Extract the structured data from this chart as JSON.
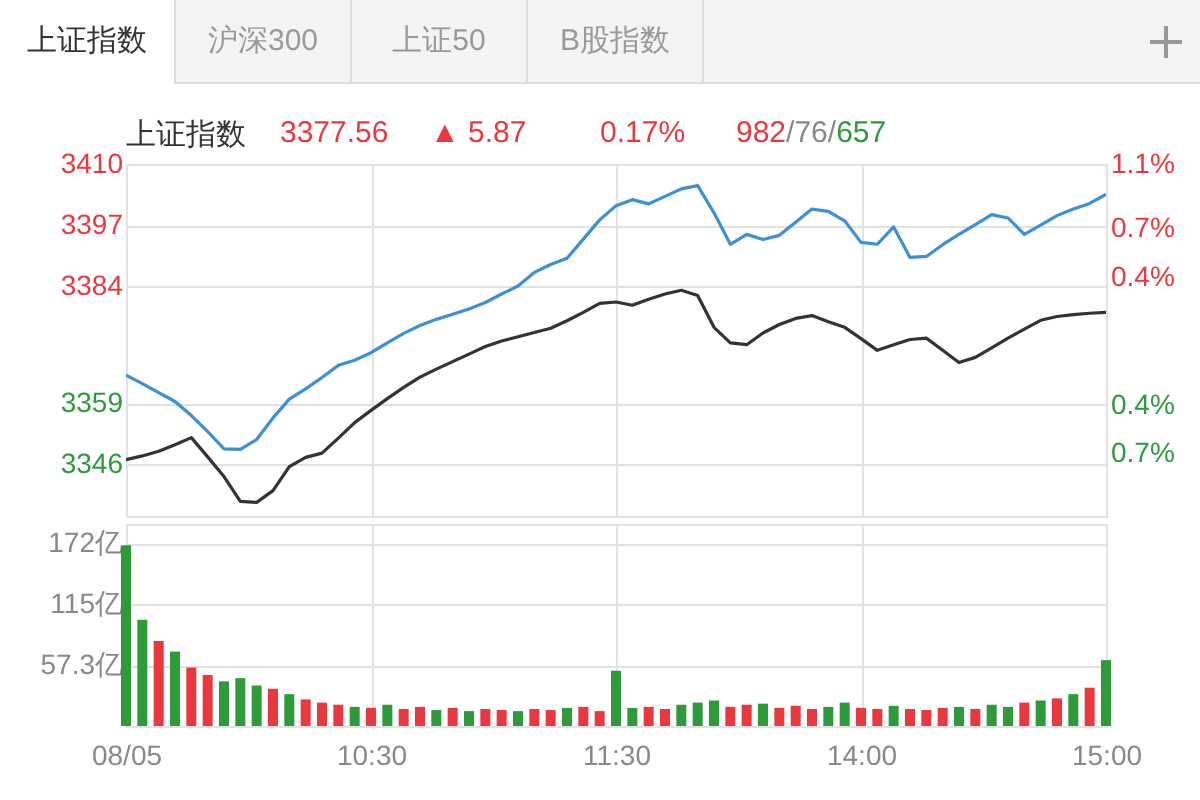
{
  "chart_data": [
    {
      "type": "line",
      "annotations": [
        "上证指数",
        "沪深300",
        "上证50",
        "B股指数",
        "上证指数",
        "3377.56",
        "▲ 5.87",
        "0.17%",
        "982/76/657"
      ],
      "categories": [
        null,
        null,
        null,
        null,
        null,
        null,
        null,
        null,
        null,
        null,
        null,
        null,
        null,
        null,
        null,
        null,
        null,
        null,
        null,
        null,
        null,
        null,
        null,
        null,
        null,
        null,
        null,
        null,
        null,
        null,
        null,
        null,
        null,
        null,
        null,
        null,
        null,
        null,
        null,
        null,
        null,
        null,
        null,
        null,
        null,
        null,
        null,
        null,
        null,
        null,
        null,
        null,
        null,
        null,
        null,
        null,
        null,
        null,
        null,
        null,
        null
      ],
      "ylim": [
        3335,
        3410
      ],
      "yticks": [
        3346,
        3359,
        3384,
        3397,
        3410
      ],
      "y2lim": [
        -1.09,
        1.1
      ],
      "y2ticks": [
        {
          "value": -0.7,
          "label": "0.7%"
        },
        {
          "value": -0.4,
          "label": "0.4%"
        },
        {
          "value": 0.4,
          "label": "0.4%"
        },
        {
          "value": 0.7,
          "label": "0.7%"
        },
        {
          "value": 1.1,
          "label": "1.1%"
        }
      ],
      "grid": true,
      "series": [
        {
          "color": "#3d8fd6",
          "values": [
            3365.0,
            3363.2,
            3361.3,
            3359.4,
            3356.4,
            3353.0,
            3349.3,
            3349.2,
            3351.3,
            3355.9,
            3359.9,
            3362.1,
            3364.5,
            3367.1,
            3368.2,
            3369.8,
            3371.9,
            3373.9,
            3375.6,
            3376.9,
            3378.0,
            3379.1,
            3380.5,
            3382.3,
            3384.0,
            3386.9,
            3388.6,
            3389.9,
            3394.0,
            3398.1,
            3401.1,
            3402.4,
            3401.5,
            3403.1,
            3404.7,
            3405.4,
            3399.6,
            3392.9,
            3395.0,
            3393.9,
            3394.8,
            3397.6,
            3400.4,
            3399.9,
            3397.9,
            3393.3,
            3392.9,
            3396.6,
            3390.1,
            3390.3,
            3392.8,
            3395.0,
            3397.1,
            3399.2,
            3398.5,
            3395.0,
            3397.0,
            3399.0,
            3400.4,
            3401.6,
            3403.5
          ]
        },
        {
          "color": "#333333",
          "values": [
            3347.0,
            3347.8,
            3348.8,
            3350.2,
            3351.7,
            3347.6,
            3343.4,
            3338.1,
            3337.9,
            3340.4,
            3345.5,
            3347.5,
            3348.4,
            3351.6,
            3354.9,
            3357.5,
            3360.0,
            3362.4,
            3364.6,
            3366.3,
            3367.9,
            3369.5,
            3371.1,
            3372.3,
            3373.2,
            3374.1,
            3375.0,
            3376.6,
            3378.4,
            3380.3,
            3380.6,
            3379.9,
            3381.2,
            3382.3,
            3383.1,
            3382.0,
            3375.2,
            3371.9,
            3371.5,
            3374.0,
            3375.8,
            3377.1,
            3377.7,
            3376.4,
            3375.2,
            3372.8,
            3370.3,
            3371.5,
            3372.6,
            3372.9,
            3370.3,
            3367.7,
            3368.8,
            3370.8,
            3372.9,
            3374.8,
            3376.7,
            3377.5,
            3377.9,
            3378.2,
            3378.4
          ]
        }
      ]
    },
    {
      "type": "bar",
      "categories": [
        "08/05",
        null,
        null,
        null,
        null,
        null,
        null,
        null,
        null,
        null,
        null,
        null,
        null,
        null,
        null,
        "10:30",
        null,
        null,
        null,
        null,
        null,
        null,
        null,
        null,
        null,
        null,
        null,
        null,
        null,
        null,
        "11:30",
        null,
        null,
        null,
        null,
        null,
        null,
        null,
        null,
        null,
        null,
        null,
        null,
        null,
        null,
        "14:00",
        null,
        null,
        null,
        null,
        null,
        null,
        null,
        null,
        null,
        null,
        null,
        null,
        null,
        null,
        "15:00"
      ],
      "ylim": [
        0,
        190
      ],
      "yticks": [
        {
          "value": 57.3,
          "label": "57.3亿"
        },
        {
          "value": 115,
          "label": "115亿"
        },
        {
          "value": 172,
          "label": "172亿"
        }
      ],
      "grid": true,
      "values": [
        170,
        100,
        80,
        70,
        55,
        48,
        42,
        45,
        38,
        35,
        30,
        25,
        22,
        20,
        18,
        17,
        20,
        16,
        18,
        15,
        17,
        14,
        16,
        15,
        14,
        16,
        15,
        17,
        18,
        14,
        52,
        17,
        18,
        16,
        20,
        22,
        24,
        18,
        20,
        21,
        17,
        19,
        16,
        18,
        22,
        17,
        16,
        19,
        16,
        15,
        17,
        18,
        16,
        20,
        18,
        22,
        24,
        26,
        30,
        36,
        62
      ],
      "colors": [
        "#2e9a3a",
        "#2e9a3a",
        "#e8393f",
        "#2e9a3a",
        "#e8393f",
        "#e8393f",
        "#2e9a3a",
        "#2e9a3a",
        "#2e9a3a",
        "#e8393f",
        "#2e9a3a",
        "#e8393f",
        "#e8393f",
        "#e8393f",
        "#2e9a3a",
        "#e8393f",
        "#2e9a3a",
        "#e8393f",
        "#e8393f",
        "#2e9a3a",
        "#e8393f",
        "#2e9a3a",
        "#e8393f",
        "#e8393f",
        "#2e9a3a",
        "#e8393f",
        "#e8393f",
        "#2e9a3a",
        "#e8393f",
        "#e8393f",
        "#2e9a3a",
        "#2e9a3a",
        "#e8393f",
        "#e8393f",
        "#2e9a3a",
        "#2e9a3a",
        "#2e9a3a",
        "#e8393f",
        "#e8393f",
        "#2e9a3a",
        "#e8393f",
        "#e8393f",
        "#e8393f",
        "#2e9a3a",
        "#2e9a3a",
        "#e8393f",
        "#e8393f",
        "#2e9a3a",
        "#e8393f",
        "#e8393f",
        "#e8393f",
        "#2e9a3a",
        "#e8393f",
        "#2e9a3a",
        "#2e9a3a",
        "#e8393f",
        "#2e9a3a",
        "#e8393f",
        "#2e9a3a",
        "#e8393f",
        "#2e9a3a"
      ]
    }
  ]
}
